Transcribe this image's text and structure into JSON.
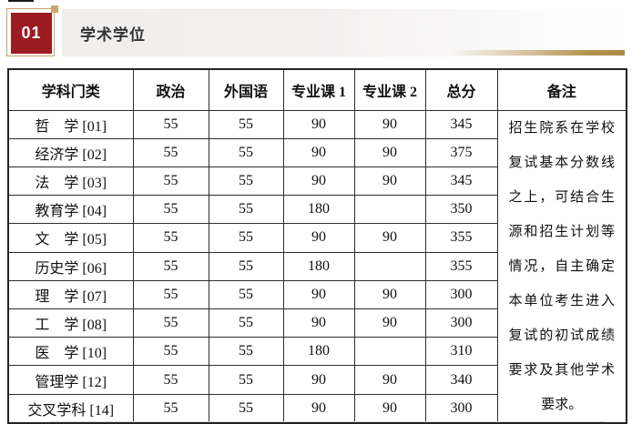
{
  "page": {
    "badge": "01",
    "title": "学术学位"
  },
  "table": {
    "columns": [
      "学科门类",
      "政治",
      "外国语",
      "专业课 1",
      "专业课 2",
      "总分",
      "备注"
    ],
    "rows": [
      {
        "category": "哲　学 [01]",
        "politics": "55",
        "foreign_language": "55",
        "course1": "90",
        "course2": "90",
        "total": "345"
      },
      {
        "category": "经济学 [02]",
        "politics": "55",
        "foreign_language": "55",
        "course1": "90",
        "course2": "90",
        "total": "375"
      },
      {
        "category": "法　学 [03]",
        "politics": "55",
        "foreign_language": "55",
        "course1": "90",
        "course2": "90",
        "total": "345"
      },
      {
        "category": "教育学 [04]",
        "politics": "55",
        "foreign_language": "55",
        "course1": "180",
        "course2": "",
        "total": "350"
      },
      {
        "category": "文　学 [05]",
        "politics": "55",
        "foreign_language": "55",
        "course1": "90",
        "course2": "90",
        "total": "355"
      },
      {
        "category": "历史学 [06]",
        "politics": "55",
        "foreign_language": "55",
        "course1": "180",
        "course2": "",
        "total": "355"
      },
      {
        "category": "理　学 [07]",
        "politics": "55",
        "foreign_language": "55",
        "course1": "90",
        "course2": "90",
        "total": "300"
      },
      {
        "category": "工　学 [08]",
        "politics": "55",
        "foreign_language": "55",
        "course1": "90",
        "course2": "90",
        "total": "300"
      },
      {
        "category": "医　学 [10]",
        "politics": "55",
        "foreign_language": "55",
        "course1": "180",
        "course2": "",
        "total": "310"
      },
      {
        "category": "管理学 [12]",
        "politics": "55",
        "foreign_language": "55",
        "course1": "90",
        "course2": "90",
        "total": "340"
      },
      {
        "category": "交叉学科 [14]",
        "politics": "55",
        "foreign_language": "55",
        "course1": "90",
        "course2": "90",
        "total": "300"
      }
    ],
    "remark": "招生院系在学校复试基本分数线之上，可结合生源和招生计划等情况，自主确定本单位考生进入复试的初试成绩要求及其他学术要求。"
  },
  "colors": {
    "badge_red": "#9c1b21",
    "gold_border": "#c8a56a",
    "gold_line": "#b2924d",
    "header_band_gray": "#f1efee",
    "table_border": "#2d2d2d"
  }
}
